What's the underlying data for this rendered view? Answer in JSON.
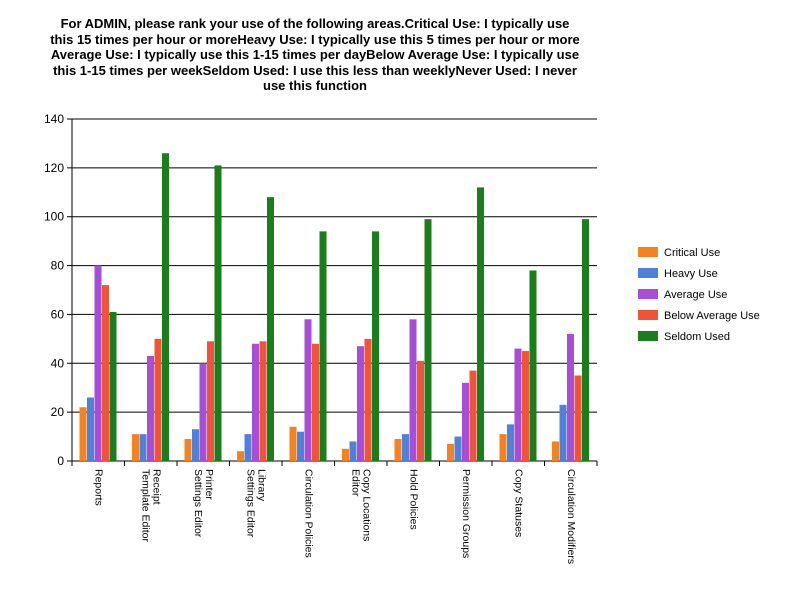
{
  "chart_data": {
    "type": "bar",
    "title": "For ADMIN, please rank your use of the following areas.Critical Use: I typically use this 15 times per hour or moreHeavy Use: I typically use this 5 times per hour or more Average Use: I typically use this 1-15 times per dayBelow Average Use: I typically use this 1-15 times per weekSeldom Used: I use this less than weeklyNever Used: I never use this function",
    "xlabel": "",
    "ylabel": "",
    "ylim": [
      0,
      140
    ],
    "yticks": [
      0,
      20,
      40,
      60,
      80,
      100,
      120,
      140
    ],
    "grid": true,
    "legend_position": "right",
    "categories": [
      [
        "Reports"
      ],
      [
        "Receipt",
        "Template Editor"
      ],
      [
        "Printer",
        "Settings Editor"
      ],
      [
        "Library",
        "Settings Editor"
      ],
      [
        "Circulation Policies"
      ],
      [
        "Copy Locations",
        "Editor"
      ],
      [
        "Hold Policies"
      ],
      [
        "Permission Groups"
      ],
      [
        "Copy Statuses"
      ],
      [
        "Circulation Modifiers"
      ]
    ],
    "series": [
      {
        "name": "Critical Use",
        "color": "#f58220",
        "values": [
          22,
          11,
          9,
          4,
          14,
          5,
          9,
          7,
          11,
          8
        ]
      },
      {
        "name": "Heavy Use",
        "color": "#4f81d9",
        "values": [
          26,
          11,
          13,
          11,
          12,
          8,
          11,
          10,
          15,
          23
        ]
      },
      {
        "name": "Average Use",
        "color": "#a64fd6",
        "values": [
          80,
          43,
          40,
          48,
          58,
          47,
          58,
          32,
          46,
          52
        ]
      },
      {
        "name": "Below Average Use",
        "color": "#f0523a",
        "values": [
          72,
          50,
          49,
          49,
          48,
          50,
          41,
          37,
          45,
          35
        ]
      },
      {
        "name": "Seldom Used",
        "color": "#1a7f1a",
        "values": [
          61,
          126,
          121,
          108,
          94,
          94,
          99,
          112,
          78,
          99
        ]
      }
    ]
  }
}
